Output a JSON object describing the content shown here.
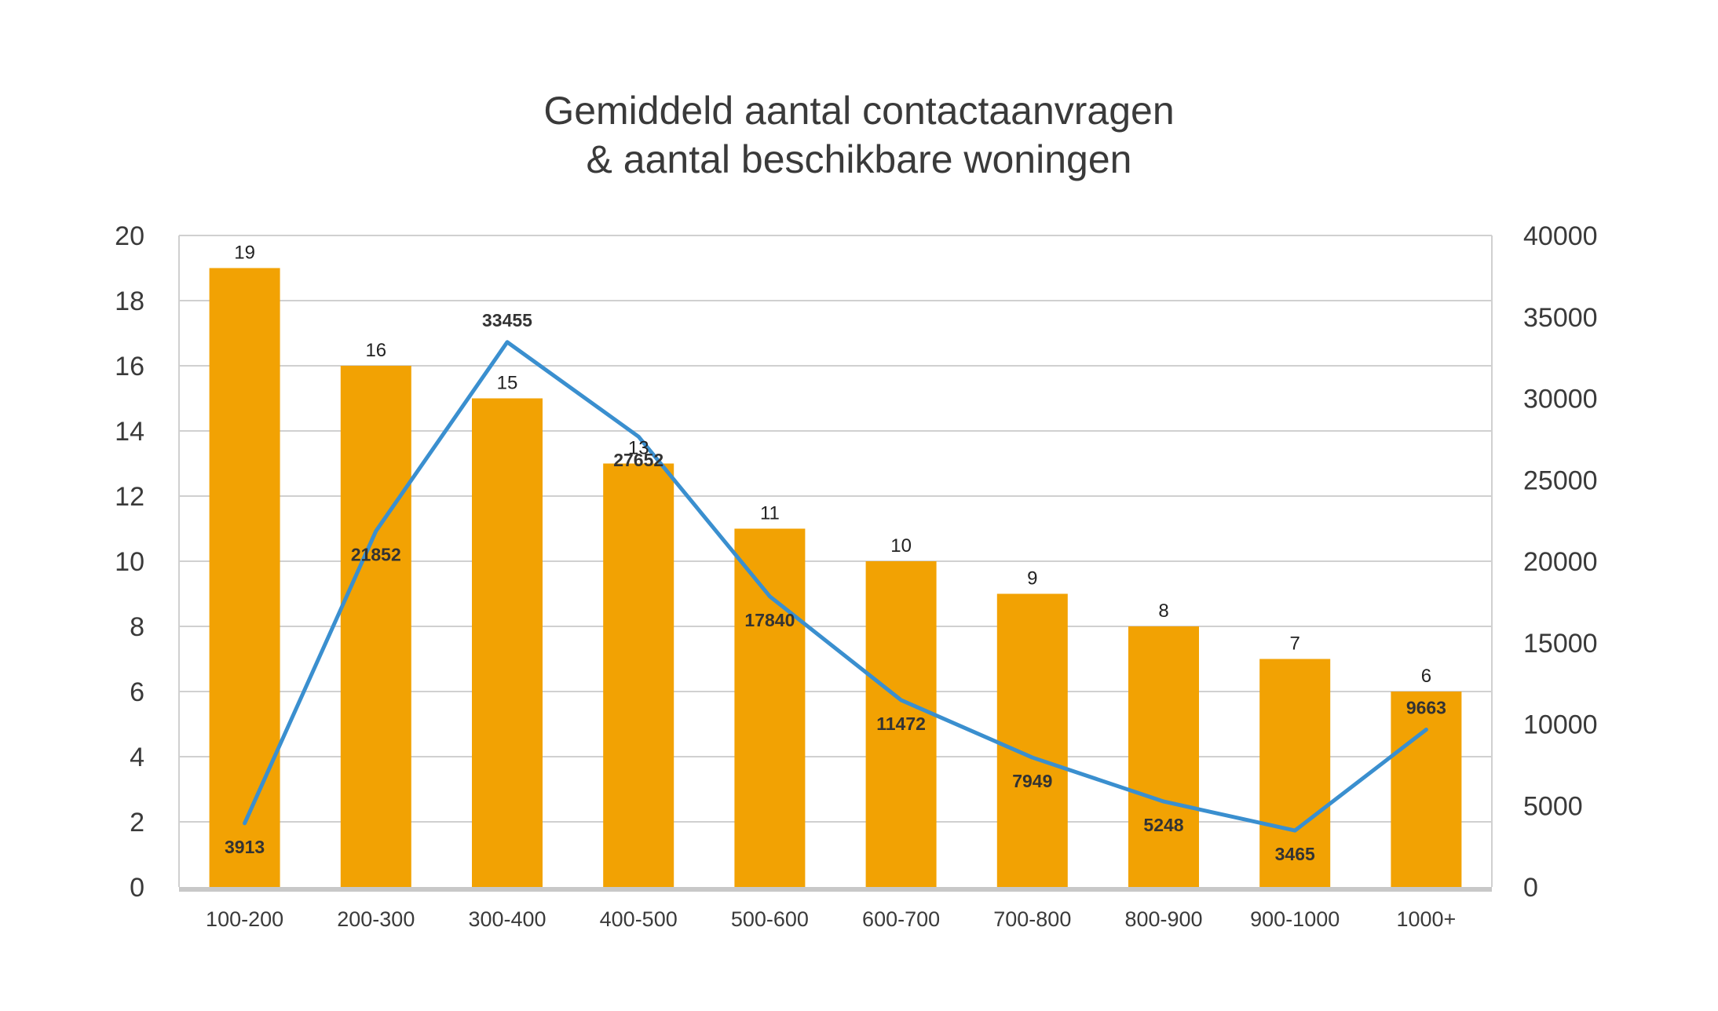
{
  "chart_data": {
    "type": "bar",
    "title_lines": [
      "Gemiddeld aantal contactaanvragen",
      "& aantal beschikbare woningen"
    ],
    "categories": [
      "100-200",
      "200-300",
      "300-400",
      "400-500",
      "500-600",
      "600-700",
      "700-800",
      "800-900",
      "900-1000",
      "1000+"
    ],
    "series": [
      {
        "name": "Gemiddeld aantal contactaanvragen",
        "type": "bar",
        "axis": "left",
        "values": [
          19,
          16,
          15,
          13,
          11,
          10,
          9,
          8,
          7,
          6
        ]
      },
      {
        "name": "Aantal beschikbare woningen",
        "type": "line",
        "axis": "right",
        "values": [
          3913,
          21852,
          33455,
          27652,
          17840,
          11472,
          7949,
          5248,
          3465,
          9663
        ]
      }
    ],
    "y_left": {
      "min": 0,
      "max": 20,
      "ticks": [
        "0",
        "2",
        "4",
        "6",
        "8",
        "10",
        "12",
        "14",
        "16",
        "18",
        "20"
      ]
    },
    "y_right": {
      "min": 0,
      "max": 40000,
      "ticks": [
        "0",
        "5000",
        "10000",
        "15000",
        "20000",
        "25000",
        "30000",
        "35000",
        "40000"
      ]
    },
    "grid": true,
    "colors": {
      "bar": "#F2A203",
      "line": "#3A8FCF",
      "grid": "#D0D0D0",
      "text": "#3A3A3A",
      "baseline": "#C8C8C8"
    }
  }
}
